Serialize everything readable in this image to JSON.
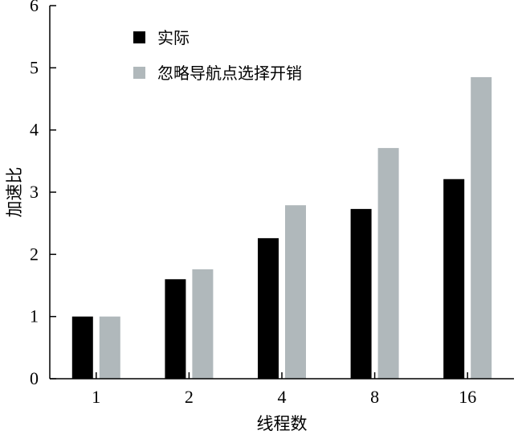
{
  "chart_data": {
    "type": "bar",
    "title": "",
    "xlabel": "线程数",
    "ylabel": "加速比",
    "categories": [
      "1",
      "2",
      "4",
      "8",
      "16"
    ],
    "ylim": [
      0,
      6
    ],
    "yticks": [
      "0",
      "1",
      "2",
      "3",
      "4",
      "5",
      "6"
    ],
    "grid": false,
    "legend_position": "top-left",
    "series": [
      {
        "name": "实际",
        "color": "#000000",
        "values": [
          1.0,
          1.6,
          2.26,
          2.73,
          3.21
        ]
      },
      {
        "name": "忽略导航点选择开销",
        "color": "#b0b8bb",
        "values": [
          1.0,
          1.76,
          2.79,
          3.71,
          4.85
        ]
      }
    ]
  }
}
